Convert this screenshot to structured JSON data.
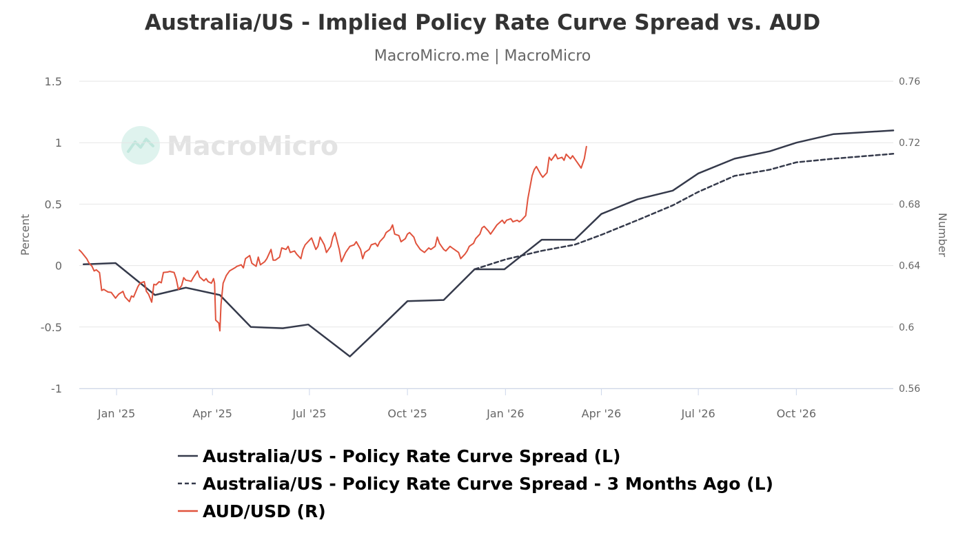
{
  "chart_data": {
    "type": "line",
    "title": "Australia/US - Implied Policy Rate Curve Spread vs. AUD",
    "subtitle": "MacroMicro.me | MacroMicro",
    "watermark": "MacroMicro",
    "y_left": {
      "label": "Percent",
      "min": -1,
      "max": 1.5,
      "ticks": [
        -1,
        -0.5,
        0,
        0.5,
        1,
        1.5
      ],
      "tick_labels": [
        "-1",
        "-0.5",
        "0",
        "0.5",
        "1",
        "1.5"
      ]
    },
    "y_right": {
      "label": "Number",
      "min": 0.56,
      "max": 0.76,
      "ticks": [
        0.56,
        0.6,
        0.64,
        0.68,
        0.72,
        0.76
      ],
      "tick_labels": [
        "0.56",
        "0.6",
        "0.64",
        "0.68",
        "0.72",
        "0.76"
      ]
    },
    "x_axis": {
      "min": "2024-11-27",
      "max": "2026-12-31",
      "ticks": [
        {
          "date": "2025-01-01",
          "label": "Jan '25"
        },
        {
          "date": "2025-04-01",
          "label": "Apr '25"
        },
        {
          "date": "2025-07-01",
          "label": "Jul '25"
        },
        {
          "date": "2025-10-01",
          "label": "Oct '25"
        },
        {
          "date": "2026-01-01",
          "label": "Jan '26"
        },
        {
          "date": "2026-04-01",
          "label": "Apr '26"
        },
        {
          "date": "2026-07-01",
          "label": "Jul '26"
        },
        {
          "date": "2026-10-01",
          "label": "Oct '26"
        }
      ]
    },
    "series": [
      {
        "name": "Australia/US - Policy Rate Curve Spread (L)",
        "color": "#353a4b",
        "dash": "solid",
        "axis": "left",
        "points": [
          [
            "2024-12-01",
            0.01
          ],
          [
            "2024-12-31",
            0.02
          ],
          [
            "2025-02-06",
            -0.24
          ],
          [
            "2025-03-07",
            -0.18
          ],
          [
            "2025-04-08",
            -0.24
          ],
          [
            "2025-05-07",
            -0.5
          ],
          [
            "2025-06-06",
            -0.51
          ],
          [
            "2025-06-30",
            -0.48
          ],
          [
            "2025-08-08",
            -0.74
          ],
          [
            "2025-09-06",
            -0.5
          ],
          [
            "2025-10-01",
            -0.29
          ],
          [
            "2025-11-04",
            -0.28
          ],
          [
            "2025-12-03",
            -0.03
          ],
          [
            "2025-12-31",
            -0.03
          ],
          [
            "2026-02-04",
            0.21
          ],
          [
            "2026-03-07",
            0.21
          ],
          [
            "2026-04-01",
            0.42
          ],
          [
            "2026-05-05",
            0.54
          ],
          [
            "2026-06-07",
            0.61
          ],
          [
            "2026-07-01",
            0.75
          ],
          [
            "2026-08-04",
            0.87
          ],
          [
            "2026-09-06",
            0.93
          ],
          [
            "2026-10-01",
            1.0
          ],
          [
            "2026-11-05",
            1.07
          ],
          [
            "2026-12-31",
            1.1
          ]
        ]
      },
      {
        "name": "Australia/US - Policy Rate Curve Spread - 3 Months Ago (L)",
        "color": "#353a4b",
        "dash": "dashed",
        "axis": "left",
        "points": [
          [
            "2025-12-03",
            -0.03
          ],
          [
            "2026-01-01",
            0.05
          ],
          [
            "2026-02-04",
            0.12
          ],
          [
            "2026-03-07",
            0.17
          ],
          [
            "2026-04-01",
            0.25
          ],
          [
            "2026-05-05",
            0.37
          ],
          [
            "2026-06-07",
            0.49
          ],
          [
            "2026-07-01",
            0.6
          ],
          [
            "2026-08-04",
            0.73
          ],
          [
            "2026-09-06",
            0.78
          ],
          [
            "2026-10-01",
            0.84
          ],
          [
            "2026-11-05",
            0.87
          ],
          [
            "2026-12-31",
            0.91
          ]
        ]
      },
      {
        "name": "AUD/USD (R)",
        "color": "#e0523c",
        "dash": "solid",
        "axis": "right",
        "points": [
          [
            "2024-11-27",
            0.6502
          ],
          [
            "2024-11-29",
            0.6488
          ],
          [
            "2024-12-02",
            0.6462
          ],
          [
            "2024-12-04",
            0.6445
          ],
          [
            "2024-12-06",
            0.6418
          ],
          [
            "2024-12-09",
            0.6395
          ],
          [
            "2024-12-11",
            0.6365
          ],
          [
            "2024-12-13",
            0.6372
          ],
          [
            "2024-12-16",
            0.6354
          ],
          [
            "2024-12-18",
            0.6238
          ],
          [
            "2024-12-20",
            0.6245
          ],
          [
            "2024-12-24",
            0.6228
          ],
          [
            "2024-12-27",
            0.6225
          ],
          [
            "2024-12-31",
            0.6188
          ],
          [
            "2025-01-03",
            0.6214
          ],
          [
            "2025-01-07",
            0.6232
          ],
          [
            "2025-01-09",
            0.6195
          ],
          [
            "2025-01-13",
            0.6165
          ],
          [
            "2025-01-15",
            0.6202
          ],
          [
            "2025-01-17",
            0.6195
          ],
          [
            "2025-01-21",
            0.6262
          ],
          [
            "2025-01-23",
            0.6285
          ],
          [
            "2025-01-27",
            0.6295
          ],
          [
            "2025-01-29",
            0.6232
          ],
          [
            "2025-01-31",
            0.6214
          ],
          [
            "2025-02-03",
            0.6162
          ],
          [
            "2025-02-05",
            0.6278
          ],
          [
            "2025-02-07",
            0.6274
          ],
          [
            "2025-02-10",
            0.6295
          ],
          [
            "2025-02-12",
            0.6288
          ],
          [
            "2025-02-14",
            0.6355
          ],
          [
            "2025-02-18",
            0.6358
          ],
          [
            "2025-02-20",
            0.6362
          ],
          [
            "2025-02-24",
            0.6355
          ],
          [
            "2025-02-26",
            0.6312
          ],
          [
            "2025-02-28",
            0.6245
          ],
          [
            "2025-03-03",
            0.6268
          ],
          [
            "2025-03-05",
            0.6321
          ],
          [
            "2025-03-07",
            0.6305
          ],
          [
            "2025-03-10",
            0.6301
          ],
          [
            "2025-03-12",
            0.6297
          ],
          [
            "2025-03-14",
            0.6322
          ],
          [
            "2025-03-18",
            0.6365
          ],
          [
            "2025-03-20",
            0.6325
          ],
          [
            "2025-03-24",
            0.6301
          ],
          [
            "2025-03-26",
            0.6315
          ],
          [
            "2025-03-28",
            0.6295
          ],
          [
            "2025-03-31",
            0.6285
          ],
          [
            "2025-04-02",
            0.6315
          ],
          [
            "2025-04-03",
            0.6285
          ],
          [
            "2025-04-04",
            0.6045
          ],
          [
            "2025-04-07",
            0.6025
          ],
          [
            "2025-04-08",
            0.5975
          ],
          [
            "2025-04-09",
            0.6145
          ],
          [
            "2025-04-11",
            0.6285
          ],
          [
            "2025-04-14",
            0.6335
          ],
          [
            "2025-04-17",
            0.6365
          ],
          [
            "2025-04-22",
            0.6385
          ],
          [
            "2025-04-24",
            0.6395
          ],
          [
            "2025-04-28",
            0.6405
          ],
          [
            "2025-04-30",
            0.6385
          ],
          [
            "2025-05-02",
            0.6445
          ],
          [
            "2025-05-06",
            0.6465
          ],
          [
            "2025-05-08",
            0.6415
          ],
          [
            "2025-05-12",
            0.6395
          ],
          [
            "2025-05-14",
            0.6455
          ],
          [
            "2025-05-16",
            0.6405
          ],
          [
            "2025-05-20",
            0.6425
          ],
          [
            "2025-05-22",
            0.6445
          ],
          [
            "2025-05-26",
            0.6505
          ],
          [
            "2025-05-28",
            0.6435
          ],
          [
            "2025-05-30",
            0.6435
          ],
          [
            "2025-06-03",
            0.6455
          ],
          [
            "2025-06-05",
            0.6515
          ],
          [
            "2025-06-09",
            0.6505
          ],
          [
            "2025-06-11",
            0.6525
          ],
          [
            "2025-06-13",
            0.6485
          ],
          [
            "2025-06-17",
            0.6495
          ],
          [
            "2025-06-19",
            0.6475
          ],
          [
            "2025-06-23",
            0.6445
          ],
          [
            "2025-06-25",
            0.6505
          ],
          [
            "2025-06-27",
            0.6535
          ],
          [
            "2025-07-01",
            0.6565
          ],
          [
            "2025-07-03",
            0.658
          ],
          [
            "2025-07-07",
            0.6505
          ],
          [
            "2025-07-09",
            0.6525
          ],
          [
            "2025-07-11",
            0.6585
          ],
          [
            "2025-07-15",
            0.6535
          ],
          [
            "2025-07-17",
            0.6485
          ],
          [
            "2025-07-21",
            0.6525
          ],
          [
            "2025-07-23",
            0.6585
          ],
          [
            "2025-07-25",
            0.6615
          ],
          [
            "2025-07-29",
            0.6505
          ],
          [
            "2025-07-31",
            0.6425
          ],
          [
            "2025-08-04",
            0.6485
          ],
          [
            "2025-08-06",
            0.6505
          ],
          [
            "2025-08-08",
            0.6525
          ],
          [
            "2025-08-12",
            0.6535
          ],
          [
            "2025-08-14",
            0.6555
          ],
          [
            "2025-08-18",
            0.6505
          ],
          [
            "2025-08-20",
            0.6445
          ],
          [
            "2025-08-22",
            0.6485
          ],
          [
            "2025-08-26",
            0.6505
          ],
          [
            "2025-08-28",
            0.6535
          ],
          [
            "2025-09-01",
            0.6545
          ],
          [
            "2025-09-03",
            0.6525
          ],
          [
            "2025-09-05",
            0.6555
          ],
          [
            "2025-09-09",
            0.6585
          ],
          [
            "2025-09-11",
            0.6615
          ],
          [
            "2025-09-15",
            0.6635
          ],
          [
            "2025-09-17",
            0.6665
          ],
          [
            "2025-09-19",
            0.6605
          ],
          [
            "2025-09-23",
            0.6595
          ],
          [
            "2025-09-25",
            0.6555
          ],
          [
            "2025-09-29",
            0.6575
          ],
          [
            "2025-10-01",
            0.6605
          ],
          [
            "2025-10-03",
            0.6615
          ],
          [
            "2025-10-07",
            0.6585
          ],
          [
            "2025-10-09",
            0.6545
          ],
          [
            "2025-10-13",
            0.6505
          ],
          [
            "2025-10-15",
            0.6495
          ],
          [
            "2025-10-17",
            0.6485
          ],
          [
            "2025-10-21",
            0.6515
          ],
          [
            "2025-10-23",
            0.6505
          ],
          [
            "2025-10-27",
            0.6525
          ],
          [
            "2025-10-29",
            0.6585
          ],
          [
            "2025-10-31",
            0.6545
          ],
          [
            "2025-11-04",
            0.6505
          ],
          [
            "2025-11-06",
            0.6495
          ],
          [
            "2025-11-10",
            0.6525
          ],
          [
            "2025-11-12",
            0.6515
          ],
          [
            "2025-11-14",
            0.6505
          ],
          [
            "2025-11-18",
            0.6485
          ],
          [
            "2025-11-20",
            0.6445
          ],
          [
            "2025-11-24",
            0.6475
          ],
          [
            "2025-11-26",
            0.6495
          ],
          [
            "2025-11-28",
            0.6525
          ],
          [
            "2025-12-02",
            0.6545
          ],
          [
            "2025-12-04",
            0.6575
          ],
          [
            "2025-12-08",
            0.6605
          ],
          [
            "2025-12-10",
            0.6645
          ],
          [
            "2025-12-12",
            0.6655
          ],
          [
            "2025-12-16",
            0.6625
          ],
          [
            "2025-12-18",
            0.6605
          ],
          [
            "2025-12-22",
            0.6645
          ],
          [
            "2025-12-24",
            0.6665
          ],
          [
            "2025-12-29",
            0.6695
          ],
          [
            "2025-12-31",
            0.6675
          ],
          [
            "2026-01-02",
            0.6695
          ],
          [
            "2026-01-06",
            0.6705
          ],
          [
            "2026-01-08",
            0.6685
          ],
          [
            "2026-01-12",
            0.6695
          ],
          [
            "2026-01-14",
            0.6685
          ],
          [
            "2026-01-16",
            0.6695
          ],
          [
            "2026-01-20",
            0.6725
          ],
          [
            "2026-01-22",
            0.6835
          ],
          [
            "2026-01-26",
            0.6985
          ],
          [
            "2026-01-28",
            0.7025
          ],
          [
            "2026-01-30",
            0.7045
          ],
          [
            "2026-02-03",
            0.6995
          ],
          [
            "2026-02-05",
            0.6975
          ],
          [
            "2026-02-09",
            0.7005
          ],
          [
            "2026-02-11",
            0.7105
          ],
          [
            "2026-02-13",
            0.7085
          ],
          [
            "2026-02-17",
            0.7125
          ],
          [
            "2026-02-19",
            0.7095
          ],
          [
            "2026-02-23",
            0.7105
          ],
          [
            "2026-02-25",
            0.7085
          ],
          [
            "2026-02-27",
            0.7125
          ],
          [
            "2026-03-03",
            0.7095
          ],
          [
            "2026-03-05",
            0.7115
          ],
          [
            "2026-03-09",
            0.7075
          ],
          [
            "2026-03-11",
            0.7055
          ],
          [
            "2026-03-13",
            0.7035
          ],
          [
            "2026-03-16",
            0.7095
          ],
          [
            "2026-03-18",
            0.7175
          ]
        ]
      }
    ],
    "legend": {
      "position": "bottom-left",
      "items": [
        "Australia/US - Policy Rate Curve Spread (L)",
        "Australia/US - Policy Rate Curve Spread - 3 Months Ago (L)",
        "AUD/USD (R)"
      ]
    }
  }
}
